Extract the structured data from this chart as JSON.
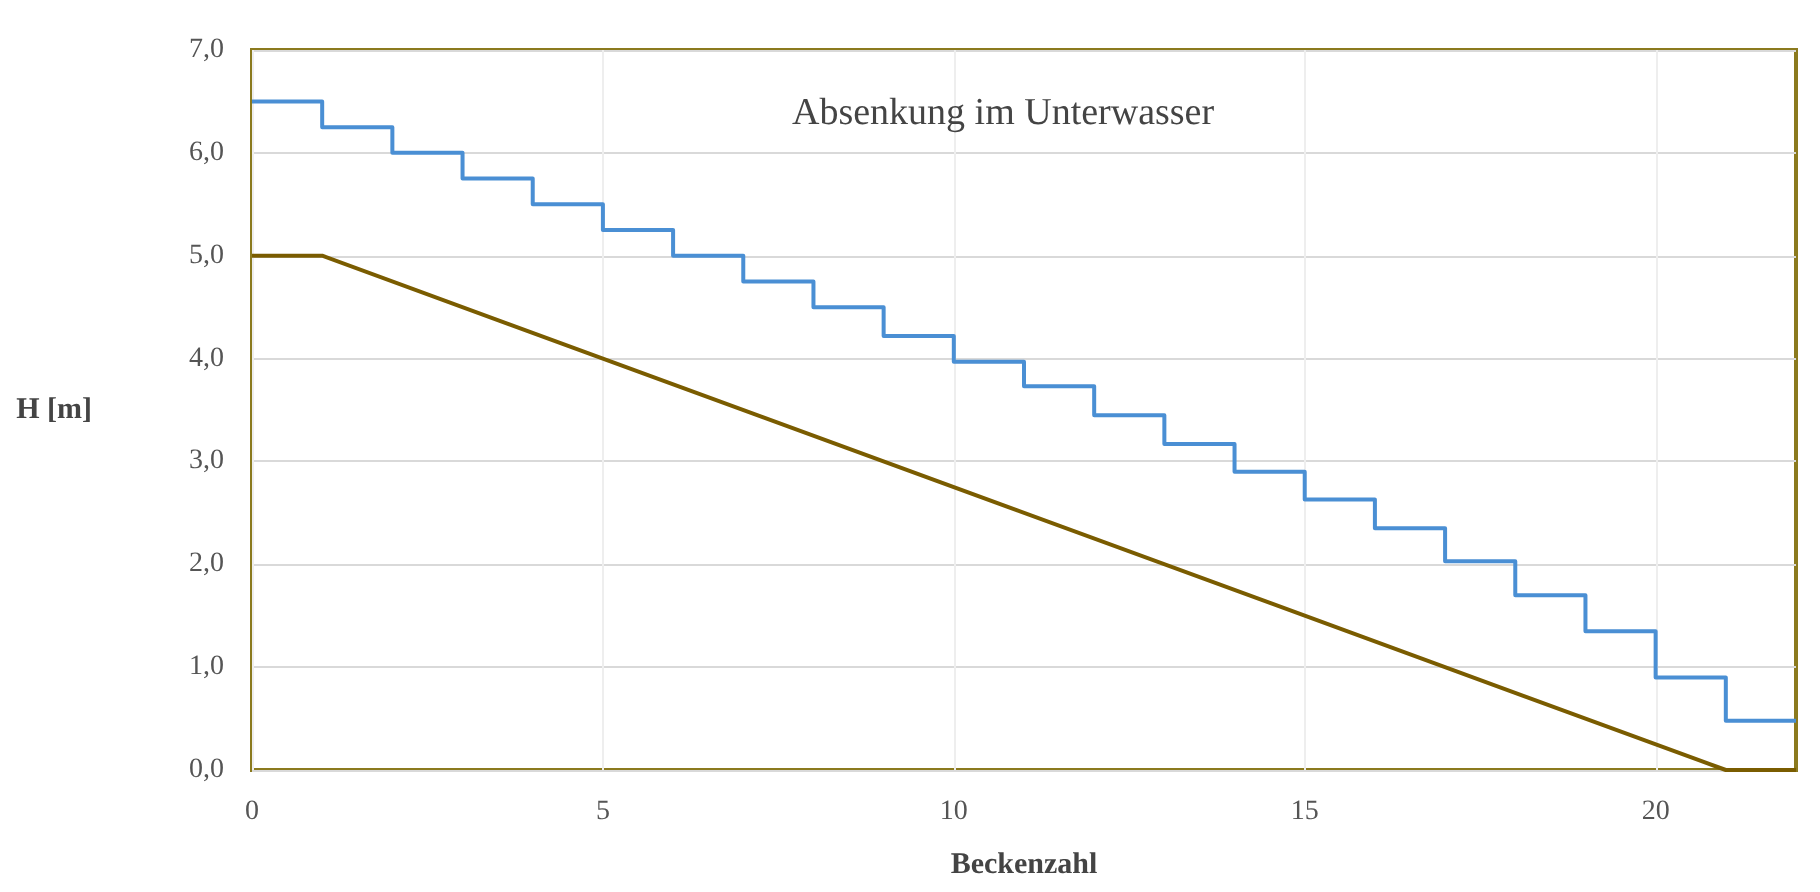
{
  "chart_data": {
    "type": "line",
    "title": "Absenkung im Unterwasser",
    "xlabel": "Beckenzahl",
    "ylabel": "H [m]",
    "series": [
      {
        "type": "step",
        "color": "#4a8fd4",
        "x": [
          0,
          1,
          2,
          3,
          4,
          5,
          6,
          7,
          8,
          9,
          10,
          11,
          12,
          13,
          14,
          15,
          16,
          17,
          18,
          19,
          20,
          21,
          22
        ],
        "values": [
          6.5,
          6.25,
          6.0,
          5.75,
          5.5,
          5.25,
          5.0,
          4.75,
          4.5,
          4.22,
          3.97,
          3.73,
          3.45,
          3.17,
          2.9,
          2.63,
          2.35,
          2.03,
          1.7,
          1.35,
          0.9,
          0.48,
          0.48
        ]
      },
      {
        "color": "#7a5c00",
        "x": [
          0,
          1,
          21,
          22
        ],
        "values": [
          5,
          5,
          0,
          0
        ]
      }
    ],
    "xlim": [
      0,
      22
    ],
    "xticks": [
      0,
      5,
      10,
      15,
      20
    ],
    "ylim": [
      0,
      7
    ],
    "yticks": [
      {
        "value": 0,
        "label": "0,0"
      },
      {
        "value": 1,
        "label": "1,0"
      },
      {
        "value": 2,
        "label": "2,0"
      },
      {
        "value": 3,
        "label": "3,0"
      },
      {
        "value": 4,
        "label": "4,0"
      },
      {
        "value": 5,
        "label": "5,0"
      },
      {
        "value": 6,
        "label": "6,0"
      },
      {
        "value": 7,
        "label": "7,0"
      }
    ],
    "grid": true,
    "marker": "none",
    "line_style": "solid"
  }
}
